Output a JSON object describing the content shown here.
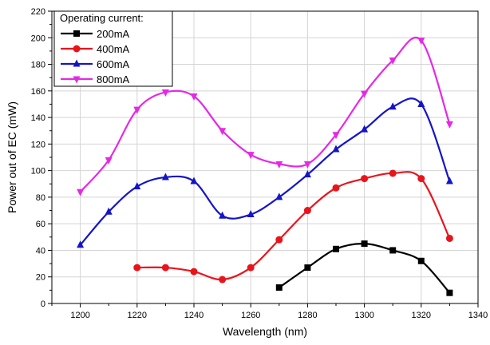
{
  "chart_data": {
    "type": "line",
    "xlabel": "Wavelength (nm)",
    "ylabel": "Power out of EC (mW)",
    "xlim": [
      1190,
      1340
    ],
    "ylim": [
      0,
      220
    ],
    "xticks": [
      1200,
      1220,
      1240,
      1260,
      1280,
      1300,
      1320,
      1340
    ],
    "yticks": [
      0,
      20,
      40,
      60,
      80,
      100,
      120,
      140,
      160,
      180,
      200,
      220
    ],
    "grid": true,
    "legend": {
      "title": "Operating current:",
      "placement": "top-left"
    },
    "series": [
      {
        "name": "200mA",
        "color": "#000000",
        "marker": "square",
        "x": [
          1270,
          1280,
          1290,
          1300,
          1310,
          1320,
          1330
        ],
        "y": [
          12,
          27,
          41,
          45,
          40,
          32,
          8
        ]
      },
      {
        "name": "400mA",
        "color": "#e8141c",
        "marker": "circle",
        "x": [
          1220,
          1230,
          1240,
          1250,
          1260,
          1270,
          1280,
          1290,
          1300,
          1310,
          1320,
          1330
        ],
        "y": [
          27,
          27,
          24,
          18,
          27,
          48,
          70,
          87,
          94,
          98,
          94,
          49
        ]
      },
      {
        "name": "600mA",
        "color": "#1414c8",
        "marker": "triangle-up",
        "x": [
          1200,
          1210,
          1220,
          1230,
          1240,
          1250,
          1260,
          1270,
          1280,
          1290,
          1300,
          1310,
          1320,
          1330
        ],
        "y": [
          44,
          69,
          88,
          95,
          92,
          66,
          67,
          80,
          97,
          116,
          131,
          148,
          150,
          92
        ]
      },
      {
        "name": "800mA",
        "color": "#e628e6",
        "marker": "triangle-down",
        "x": [
          1200,
          1210,
          1220,
          1230,
          1240,
          1250,
          1260,
          1270,
          1280,
          1290,
          1300,
          1310,
          1320,
          1330
        ],
        "y": [
          84,
          108,
          146,
          159,
          156,
          130,
          112,
          105,
          105,
          127,
          158,
          183,
          198,
          135
        ]
      }
    ]
  }
}
